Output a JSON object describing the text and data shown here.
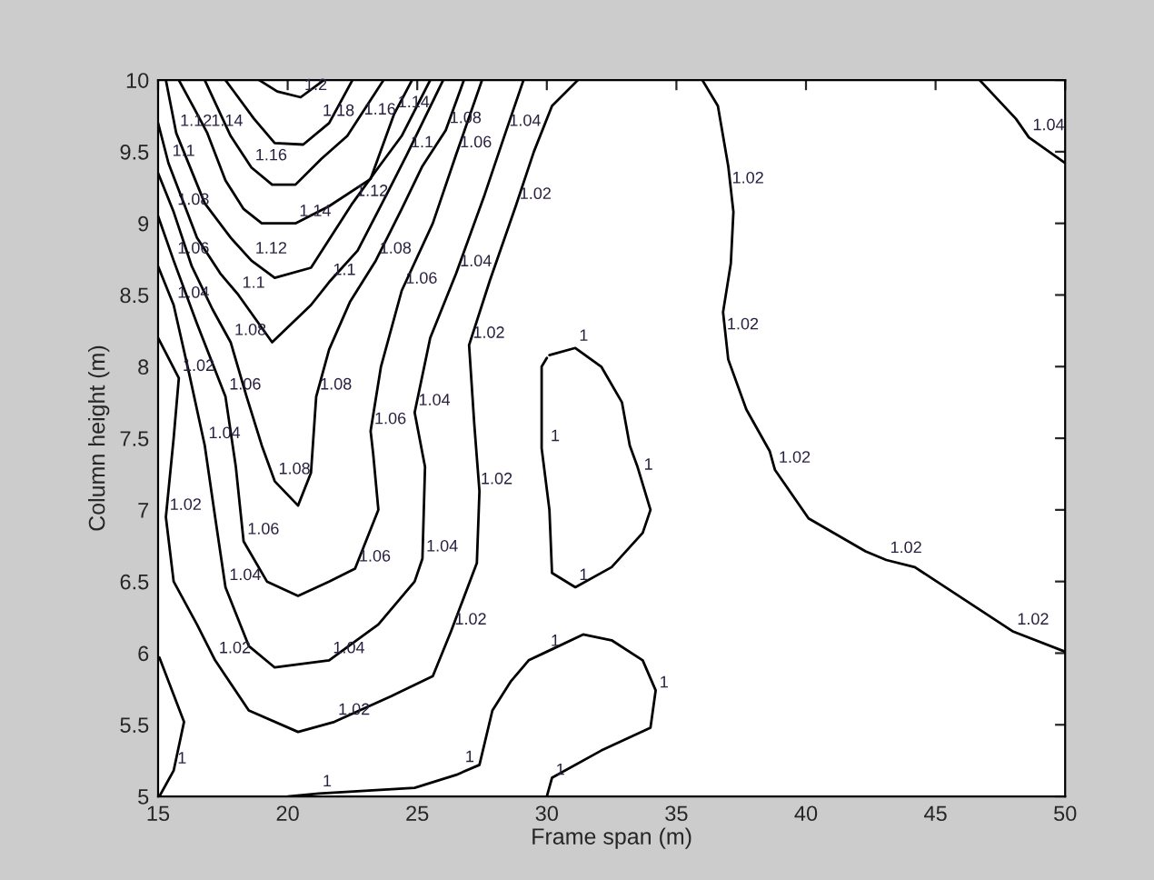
{
  "chart_data": {
    "type": "line",
    "xlabel": "Frame span (m)",
    "ylabel": "Column height (m)",
    "xlim": [
      15,
      50
    ],
    "ylim": [
      5,
      10
    ],
    "xticks": [
      15,
      20,
      25,
      30,
      35,
      40,
      45,
      50
    ],
    "yticks": [
      5,
      5.5,
      6,
      6.5,
      7,
      7.5,
      8,
      8.5,
      9,
      9.5,
      10
    ],
    "grid": false,
    "series": [
      {
        "color": "#000000",
        "x": [
          18.9,
          19.6,
          20.5,
          21.4
        ],
        "values": [
          10,
          9.92,
          9.88,
          10
        ]
      },
      {
        "color": "#000000",
        "x": [
          17.6,
          18.7,
          19.5,
          20.6,
          21.6,
          22.5
        ],
        "values": [
          10,
          9.73,
          9.56,
          9.55,
          9.7,
          10
        ]
      },
      {
        "color": "#000000",
        "x": [
          16.8,
          17.8,
          18.6,
          19.4,
          20.3,
          21.3,
          22.3,
          23.7
        ],
        "values": [
          10,
          9.61,
          9.39,
          9.27,
          9.27,
          9.45,
          9.61,
          10
        ]
      },
      {
        "color": "#000000",
        "x": [
          15.8,
          16.4,
          16.9,
          17.6,
          18.3,
          19.0,
          20.3,
          21.6,
          23.2,
          24.1,
          24.8
        ],
        "values": [
          10,
          9.8,
          9.63,
          9.3,
          9.1,
          9.0,
          9.0,
          9.12,
          9.31,
          9.76,
          10
        ]
      },
      {
        "color": "#000000",
        "x": [
          15.3,
          15.7,
          16.8,
          17.8,
          18.6,
          19.5,
          20.9,
          22.0,
          22.5,
          23.5,
          24.4,
          25.5
        ],
        "values": [
          10,
          9.63,
          9.14,
          8.9,
          8.74,
          8.62,
          8.69,
          9.0,
          9.14,
          9.39,
          9.61,
          10
        ]
      },
      {
        "color": "#000000",
        "x": [
          15,
          15.4,
          16.5,
          17.4,
          18.1,
          19.4,
          20.9,
          21.6,
          22.7,
          23.9,
          24.6,
          26.0
        ],
        "values": [
          9.7,
          9.42,
          8.9,
          8.65,
          8.5,
          8.17,
          8.43,
          8.59,
          8.81,
          9.23,
          9.48,
          10
        ]
      },
      {
        "color": "#000000",
        "x": [
          15,
          15.6,
          16.3,
          17.1,
          17.8,
          18.4,
          19.0,
          19.5,
          20.4,
          20.9,
          21.1,
          21.6,
          22.4,
          23.4,
          24.4,
          25.2,
          26.1,
          26.8
        ],
        "values": [
          9.35,
          9.08,
          8.7,
          8.4,
          8.17,
          7.8,
          7.45,
          7.2,
          7.03,
          7.26,
          7.79,
          8.12,
          8.45,
          8.74,
          9.1,
          9.4,
          9.65,
          10
        ]
      },
      {
        "color": "#000000",
        "x": [
          15,
          15.6,
          16.5,
          17.6,
          18.0,
          18.3,
          19.2,
          20.4,
          21.6,
          22.6,
          23.5,
          23.3,
          23.2,
          23.6,
          24.4,
          25.6,
          26.5,
          27.5
        ],
        "values": [
          9.05,
          8.74,
          8.3,
          7.79,
          7.3,
          6.78,
          6.5,
          6.4,
          6.5,
          6.59,
          7.0,
          7.39,
          7.55,
          8.0,
          8.53,
          9.0,
          9.48,
          10
        ]
      },
      {
        "color": "#000000",
        "x": [
          15,
          15.6,
          16.2,
          16.8,
          17.2,
          17.6,
          18.5,
          19.5,
          21.6,
          23.5,
          24.9,
          25.2,
          25.3,
          24.9,
          25.5,
          26.5,
          27.6,
          28.4,
          29.1
        ],
        "values": [
          8.7,
          8.43,
          7.95,
          7.45,
          6.95,
          6.46,
          6.05,
          5.9,
          5.95,
          6.2,
          6.5,
          6.66,
          7.3,
          7.68,
          8.2,
          8.65,
          9.2,
          9.63,
          10
        ]
      },
      {
        "color": "#000000",
        "x": [
          15,
          15.8,
          15.6,
          15.3,
          15.6,
          16.5,
          17.2,
          18.5,
          20.4,
          21.8,
          24.0,
          25.6,
          26.3,
          27.3,
          27.4,
          27.2,
          27.0,
          27.8,
          28.8,
          29.5,
          30.2,
          31.2
        ],
        "values": [
          8.2,
          7.92,
          7.5,
          6.95,
          6.5,
          6.2,
          5.95,
          5.6,
          5.45,
          5.52,
          5.7,
          5.84,
          6.15,
          6.63,
          7.13,
          7.6,
          8.15,
          8.6,
          9.12,
          9.5,
          9.82,
          10
        ]
      },
      {
        "color": "#000000",
        "x": [
          36.0,
          36.6,
          37.0,
          37.2,
          37.1,
          36.8,
          37.0,
          37.7,
          38.6,
          38.8,
          40.1,
          42.3,
          43.1,
          44.2,
          48.0,
          50
        ],
        "values": [
          10,
          9.82,
          9.4,
          9.08,
          8.72,
          8.38,
          8.05,
          7.7,
          7.41,
          7.28,
          6.94,
          6.71,
          6.65,
          6.6,
          6.15,
          6.01
        ]
      },
      {
        "color": "#000000",
        "x": [
          46.7,
          48.1,
          48.6,
          50
        ],
        "values": [
          10,
          9.73,
          9.6,
          9.42
        ]
      },
      {
        "color": "#000000",
        "x": [
          15.05,
          16.0,
          15.6,
          15.05
        ],
        "values": [
          5.97,
          5.52,
          5.18,
          5.0
        ]
      },
      {
        "color": "#000000",
        "x": [
          20.0,
          21.2,
          24.9,
          26.5,
          27.4,
          27.9,
          28.6,
          29.3,
          30.0,
          31.4,
          32.5,
          33.7,
          34.2,
          34.0,
          32.1,
          30.2,
          30.0
        ],
        "values": [
          5.0,
          5.02,
          5.06,
          5.15,
          5.22,
          5.6,
          5.8,
          5.95,
          6.01,
          6.13,
          6.09,
          5.95,
          5.74,
          5.48,
          5.32,
          5.13,
          5.0
        ]
      },
      {
        "color": "#000000",
        "x": [
          30.1,
          31.1,
          32.1,
          32.9,
          33.2,
          33.5,
          34.0,
          33.7,
          32.5,
          31.1,
          30.2,
          30.1,
          29.8,
          29.8,
          30.0
        ],
        "values": [
          8.08,
          8.13,
          8.0,
          7.75,
          7.45,
          7.3,
          7.0,
          6.84,
          6.6,
          6.46,
          6.56,
          7.0,
          7.43,
          8.0,
          8.06
        ]
      }
    ],
    "annotations": [
      {
        "text": "1.2",
        "x": 20.5,
        "y": 9.88
      },
      {
        "text": "1.18",
        "x": 21.2,
        "y": 9.7
      },
      {
        "text": "1.16",
        "x": 22.8,
        "y": 9.71
      },
      {
        "text": "1.14",
        "x": 24.1,
        "y": 9.76
      },
      {
        "text": "1.12",
        "x": 15.7,
        "y": 9.63
      },
      {
        "text": "1.14",
        "x": 16.9,
        "y": 9.63
      },
      {
        "text": "1.16",
        "x": 18.6,
        "y": 9.39
      },
      {
        "text": "1.14",
        "x": 20.3,
        "y": 9.0
      },
      {
        "text": "1.12",
        "x": 18.6,
        "y": 8.74
      },
      {
        "text": "1.12",
        "x": 22.5,
        "y": 9.14
      },
      {
        "text": "1.1",
        "x": 15.4,
        "y": 9.42
      },
      {
        "text": "1.1",
        "x": 18.1,
        "y": 8.5
      },
      {
        "text": "1.1",
        "x": 21.6,
        "y": 8.59
      },
      {
        "text": "1.1",
        "x": 24.6,
        "y": 9.48
      },
      {
        "text": "1.08",
        "x": 15.6,
        "y": 9.08
      },
      {
        "text": "1.08",
        "x": 17.8,
        "y": 8.17
      },
      {
        "text": "1.08",
        "x": 19.5,
        "y": 7.2
      },
      {
        "text": "1.08",
        "x": 21.1,
        "y": 7.79
      },
      {
        "text": "1.08",
        "x": 23.4,
        "y": 8.74
      },
      {
        "text": "1.08",
        "x": 26.1,
        "y": 9.65
      },
      {
        "text": "1.06",
        "x": 15.6,
        "y": 8.74
      },
      {
        "text": "1.06",
        "x": 17.6,
        "y": 7.79
      },
      {
        "text": "1.06",
        "x": 18.3,
        "y": 6.78
      },
      {
        "text": "1.06",
        "x": 22.6,
        "y": 6.59
      },
      {
        "text": "1.06",
        "x": 23.2,
        "y": 7.55
      },
      {
        "text": "1.06",
        "x": 24.4,
        "y": 8.53
      },
      {
        "text": "1.06",
        "x": 26.5,
        "y": 9.48
      },
      {
        "text": "1.04",
        "x": 15.6,
        "y": 8.43
      },
      {
        "text": "1.04",
        "x": 16.8,
        "y": 7.45
      },
      {
        "text": "1.04",
        "x": 17.6,
        "y": 6.46
      },
      {
        "text": "1.04",
        "x": 21.6,
        "y": 5.95
      },
      {
        "text": "1.04",
        "x": 25.2,
        "y": 6.66
      },
      {
        "text": "1.04",
        "x": 24.9,
        "y": 7.68
      },
      {
        "text": "1.04",
        "x": 26.5,
        "y": 8.65
      },
      {
        "text": "1.04",
        "x": 28.4,
        "y": 9.63
      },
      {
        "text": "1.02",
        "x": 15.8,
        "y": 7.92
      },
      {
        "text": "1.02",
        "x": 15.3,
        "y": 6.95
      },
      {
        "text": "1.02",
        "x": 17.2,
        "y": 5.95
      },
      {
        "text": "1.02",
        "x": 21.8,
        "y": 5.52
      },
      {
        "text": "1.02",
        "x": 26.3,
        "y": 6.15
      },
      {
        "text": "1.02",
        "x": 27.3,
        "y": 7.13
      },
      {
        "text": "1.02",
        "x": 27.0,
        "y": 8.15
      },
      {
        "text": "1.02",
        "x": 28.8,
        "y": 9.12
      },
      {
        "text": "1.02",
        "x": 37.0,
        "y": 9.23
      },
      {
        "text": "1.02",
        "x": 36.8,
        "y": 8.21
      },
      {
        "text": "1.02",
        "x": 38.8,
        "y": 7.28
      },
      {
        "text": "1.02",
        "x": 43.1,
        "y": 6.65
      },
      {
        "text": "1.02",
        "x": 48.0,
        "y": 6.15
      },
      {
        "text": "1.04",
        "x": 48.6,
        "y": 9.6
      },
      {
        "text": "1",
        "x": 15.6,
        "y": 5.18
      },
      {
        "text": "1",
        "x": 21.2,
        "y": 5.02
      },
      {
        "text": "1",
        "x": 26.7,
        "y": 5.19
      },
      {
        "text": "1",
        "x": 30.0,
        "y": 6.0
      },
      {
        "text": "1",
        "x": 30.2,
        "y": 5.1
      },
      {
        "text": "1",
        "x": 34.2,
        "y": 5.71
      },
      {
        "text": "1",
        "x": 31.1,
        "y": 8.13
      },
      {
        "text": "1",
        "x": 30.0,
        "y": 7.43
      },
      {
        "text": "1",
        "x": 33.6,
        "y": 7.23
      },
      {
        "text": "1",
        "x": 31.1,
        "y": 6.46
      }
    ]
  }
}
